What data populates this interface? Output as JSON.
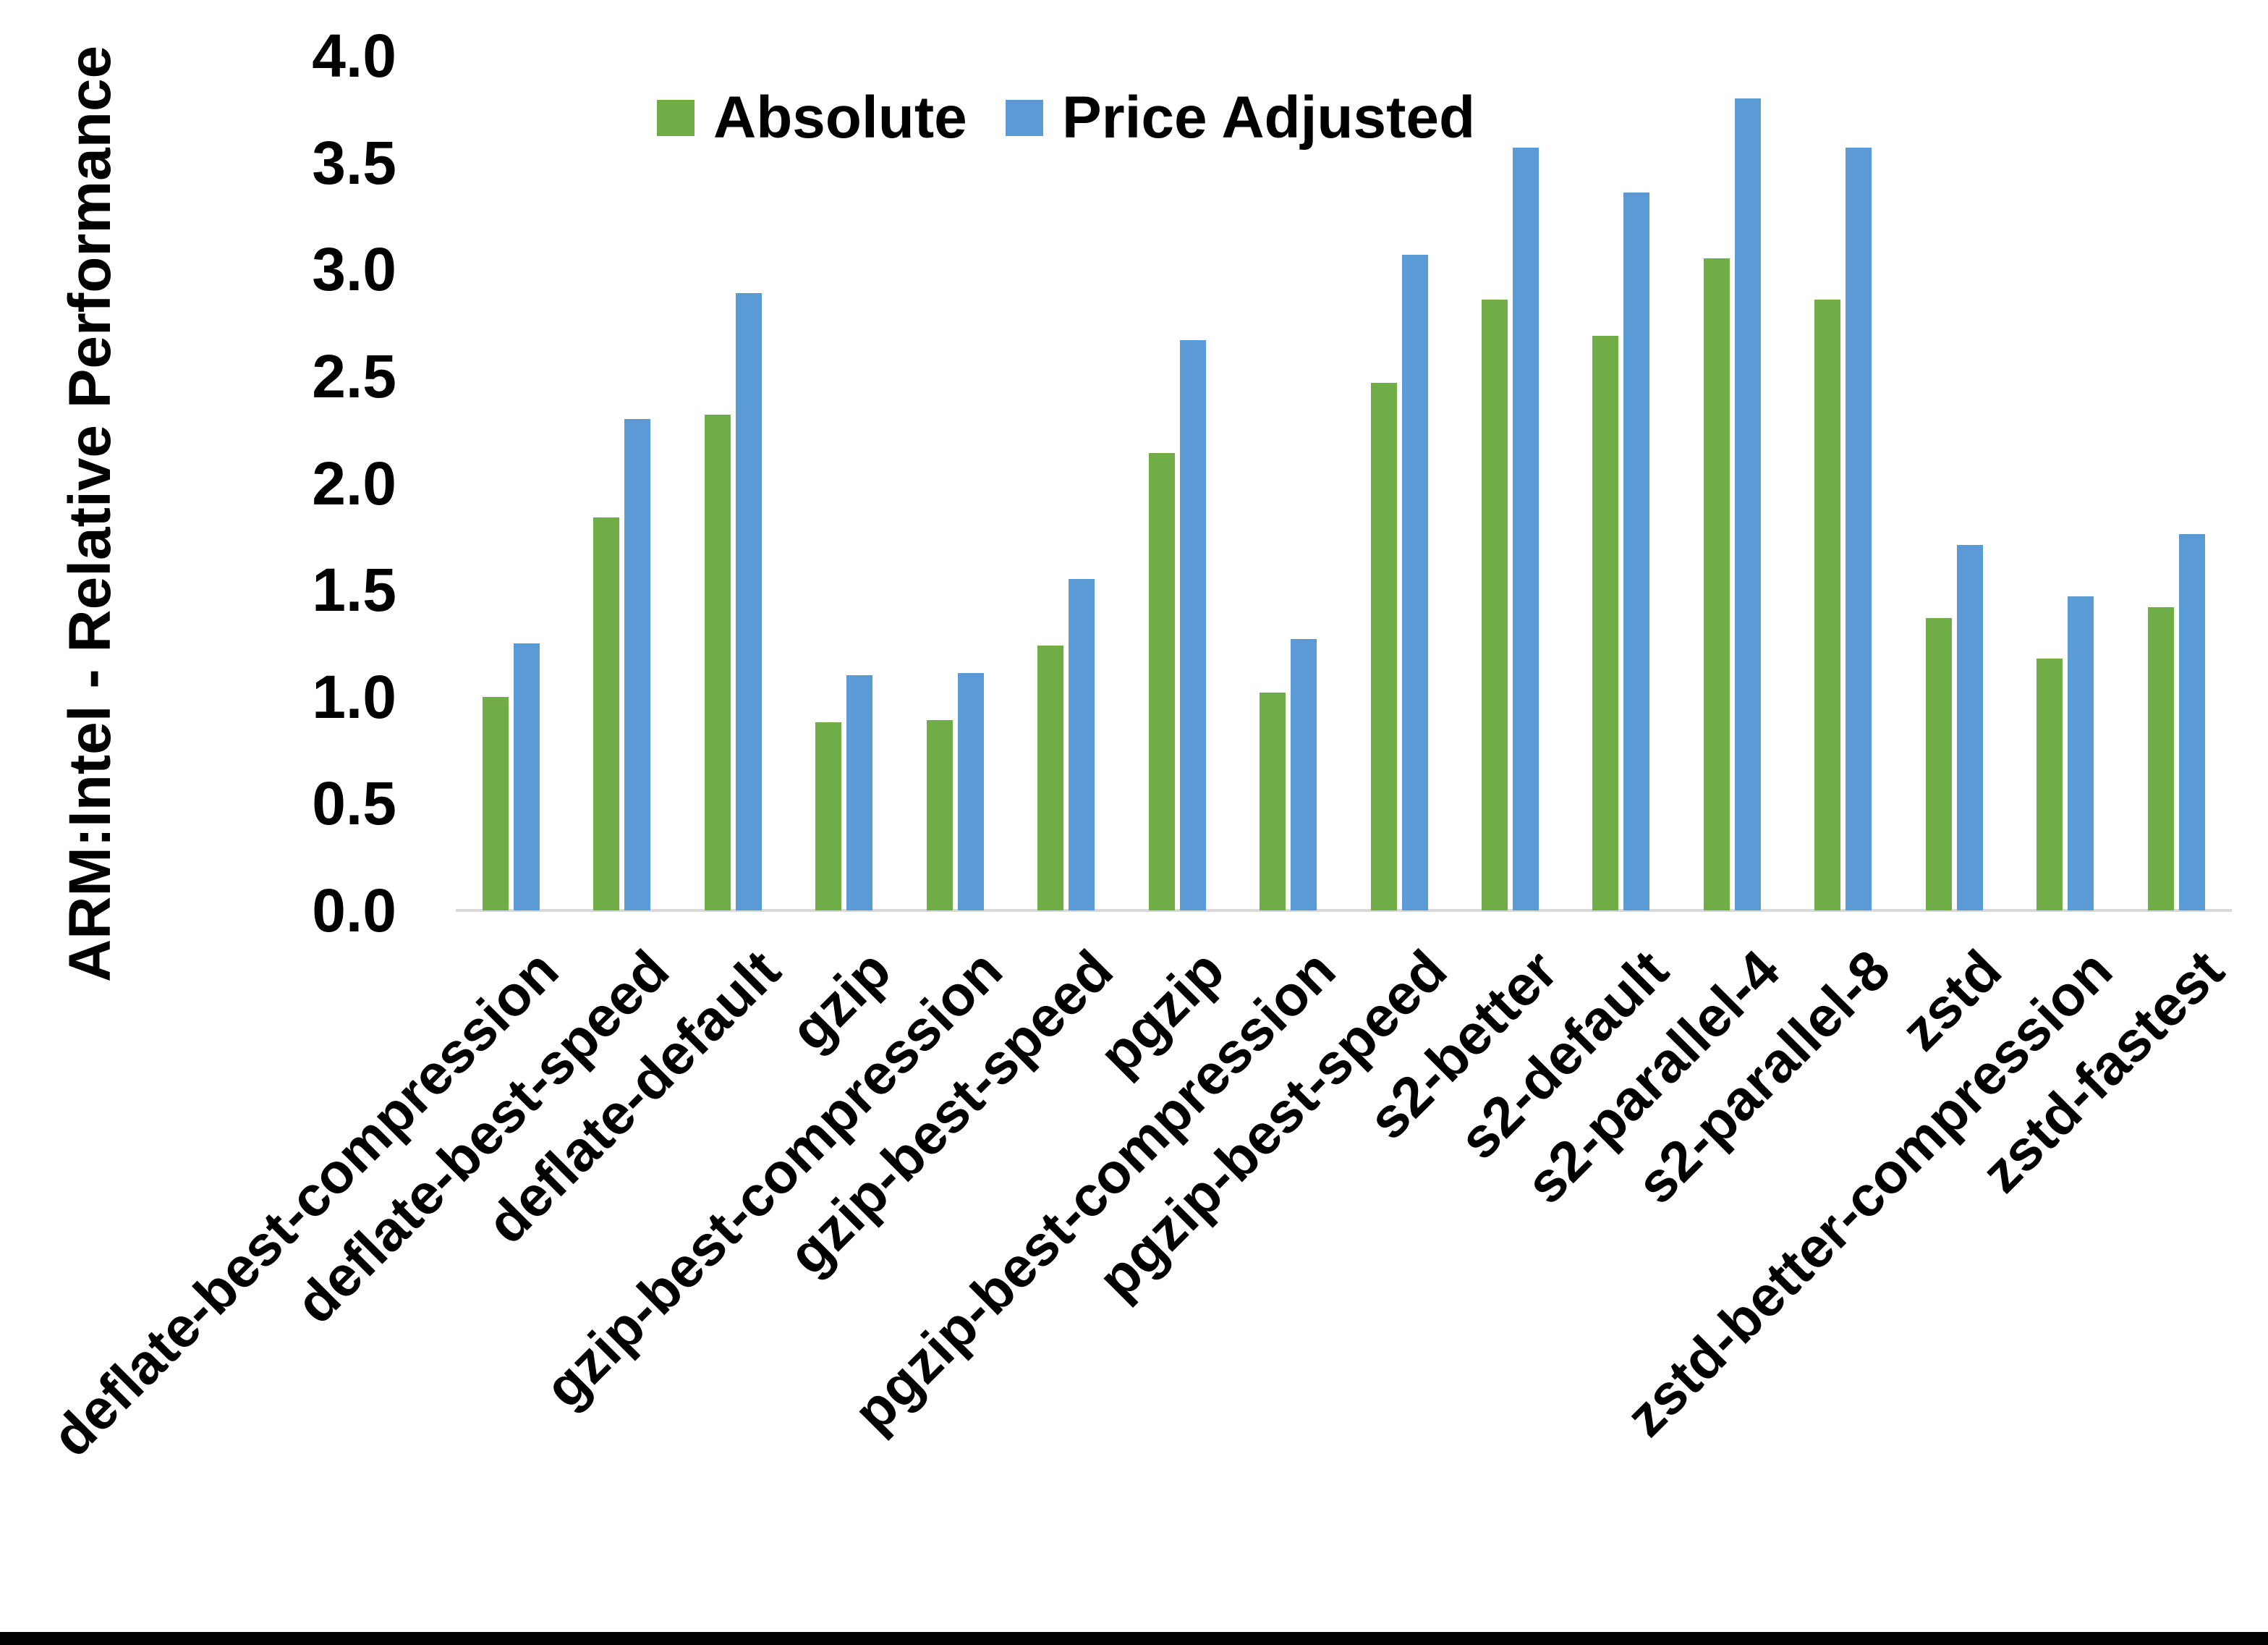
{
  "colors": {
    "background": "#FFFFFF",
    "axis_line": "#D9D9D9",
    "text": "#000000",
    "bottom_border": "#000000",
    "absolute_green": "#70AD47",
    "price_adjusted_blue": "#5B9BD5"
  },
  "legend": {
    "items": [
      {
        "label": "Absolute",
        "color": "#70AD47"
      },
      {
        "label": "Price Adjusted",
        "color": "#5B9BD5"
      }
    ]
  },
  "chart_data": {
    "type": "bar",
    "title": "",
    "xlabel": "",
    "ylabel": "ARM:Intel - Relative Performance",
    "ylim": [
      0,
      4.0
    ],
    "ytick_step": 0.5,
    "yticks": [
      "0.0",
      "0.5",
      "1.0",
      "1.5",
      "2.0",
      "2.5",
      "3.0",
      "3.5",
      "4.0"
    ],
    "grid": false,
    "legend_position": "top-center",
    "categories": [
      "deflate-best-compression",
      "deflate-best-speed",
      "deflate-default",
      "gzip",
      "gzip-best-compression",
      "gzip-best-speed",
      "pgzip",
      "pgzip-best-compression",
      "pgzip-best-speed",
      "s2-better",
      "s2-default",
      "s2-parallel-4",
      "s2-parallel-8",
      "zstd",
      "zstd-better-compression",
      "zstd-fastest"
    ],
    "series": [
      {
        "name": "Absolute",
        "color": "#70AD47",
        "values": [
          1.0,
          1.84,
          2.32,
          0.88,
          0.89,
          1.24,
          2.14,
          1.02,
          2.47,
          2.86,
          2.69,
          3.05,
          2.86,
          1.37,
          1.18,
          1.42
        ]
      },
      {
        "name": "Price Adjusted",
        "color": "#5B9BD5",
        "values": [
          1.25,
          2.3,
          2.89,
          1.1,
          1.11,
          1.55,
          2.67,
          1.27,
          3.07,
          3.57,
          3.36,
          3.8,
          3.57,
          1.71,
          1.47,
          1.76
        ]
      }
    ]
  }
}
